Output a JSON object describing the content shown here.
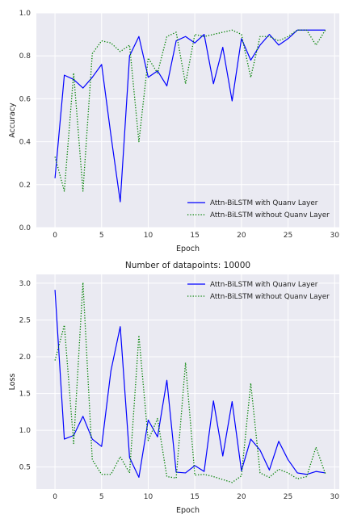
{
  "chart_data": [
    {
      "type": "line",
      "title": "",
      "xlabel": "Epoch",
      "ylabel": "Accuracy",
      "xlim": [
        -2,
        30.5
      ],
      "ylim": [
        0,
        1.0
      ],
      "xticks": [
        0,
        5,
        10,
        15,
        20,
        25,
        30
      ],
      "yticks": [
        0.0,
        0.2,
        0.4,
        0.6,
        0.8,
        1.0
      ],
      "xtick_labels": [
        "0",
        "5",
        "10",
        "15",
        "20",
        "25",
        "30"
      ],
      "ytick_labels": [
        "0.0",
        "0.2",
        "0.4",
        "0.6",
        "0.8",
        "1.0"
      ],
      "grid": true,
      "legend_position": "lower-right",
      "x": [
        0,
        1,
        2,
        3,
        4,
        5,
        6,
        7,
        8,
        9,
        10,
        11,
        12,
        13,
        14,
        15,
        16,
        17,
        18,
        19,
        20,
        21,
        22,
        23,
        24,
        25,
        26,
        27,
        28,
        29
      ],
      "series": [
        {
          "name": "Attn-BiLSTM with Quanv Layer",
          "color": "#0000ff",
          "style": "solid",
          "values": [
            0.23,
            0.71,
            0.69,
            0.65,
            0.7,
            0.76,
            0.43,
            0.12,
            0.8,
            0.89,
            0.7,
            0.73,
            0.66,
            0.87,
            0.89,
            0.86,
            0.9,
            0.67,
            0.84,
            0.59,
            0.88,
            0.78,
            0.85,
            0.9,
            0.85,
            0.88,
            0.92,
            0.92,
            0.92,
            0.92
          ]
        },
        {
          "name": "Attn-BiLSTM without Quanv Layer",
          "color": "#008000",
          "style": "dotted",
          "values": [
            0.33,
            0.17,
            0.72,
            0.17,
            0.81,
            0.87,
            0.86,
            0.82,
            0.85,
            0.4,
            0.79,
            0.72,
            0.89,
            0.91,
            0.67,
            0.9,
            0.89,
            0.9,
            0.91,
            0.92,
            0.9,
            0.7,
            0.89,
            0.89,
            0.87,
            0.89,
            0.92,
            0.92,
            0.85,
            0.92
          ]
        }
      ]
    },
    {
      "type": "line",
      "title": "Number of datapoints: 10000",
      "xlabel": "Epoch",
      "ylabel": "Loss",
      "xlim": [
        -2,
        30.5
      ],
      "ylim": [
        0.2,
        3.12
      ],
      "xticks": [
        0,
        5,
        10,
        15,
        20,
        25,
        30
      ],
      "yticks": [
        0.5,
        1.0,
        1.5,
        2.0,
        2.5,
        3.0
      ],
      "xtick_labels": [
        "0",
        "5",
        "10",
        "15",
        "20",
        "25",
        "30"
      ],
      "ytick_labels": [
        "0.5",
        "1.0",
        "1.5",
        "2.0",
        "2.5",
        "3.0"
      ],
      "grid": true,
      "legend_position": "upper-right",
      "x": [
        0,
        1,
        2,
        3,
        4,
        5,
        6,
        7,
        8,
        9,
        10,
        11,
        12,
        13,
        14,
        15,
        16,
        17,
        18,
        19,
        20,
        21,
        22,
        23,
        24,
        25,
        26,
        27,
        28,
        29
      ],
      "series": [
        {
          "name": "Attn-BiLSTM with Quanv Layer",
          "color": "#0000ff",
          "style": "solid",
          "values": [
            2.91,
            0.88,
            0.93,
            1.19,
            0.88,
            0.78,
            1.81,
            2.41,
            0.63,
            0.36,
            1.14,
            0.91,
            1.68,
            0.43,
            0.42,
            0.52,
            0.44,
            1.4,
            0.65,
            1.39,
            0.45,
            0.88,
            0.73,
            0.46,
            0.85,
            0.6,
            0.42,
            0.4,
            0.44,
            0.42
          ]
        },
        {
          "name": "Attn-BiLSTM without Quanv Layer",
          "color": "#008000",
          "style": "dotted",
          "values": [
            1.95,
            2.43,
            0.82,
            3.01,
            0.6,
            0.4,
            0.4,
            0.64,
            0.42,
            2.29,
            0.86,
            1.16,
            0.37,
            0.35,
            1.92,
            0.39,
            0.4,
            0.37,
            0.33,
            0.29,
            0.38,
            1.64,
            0.42,
            0.36,
            0.47,
            0.42,
            0.34,
            0.37,
            0.77,
            0.41
          ]
        }
      ]
    }
  ]
}
